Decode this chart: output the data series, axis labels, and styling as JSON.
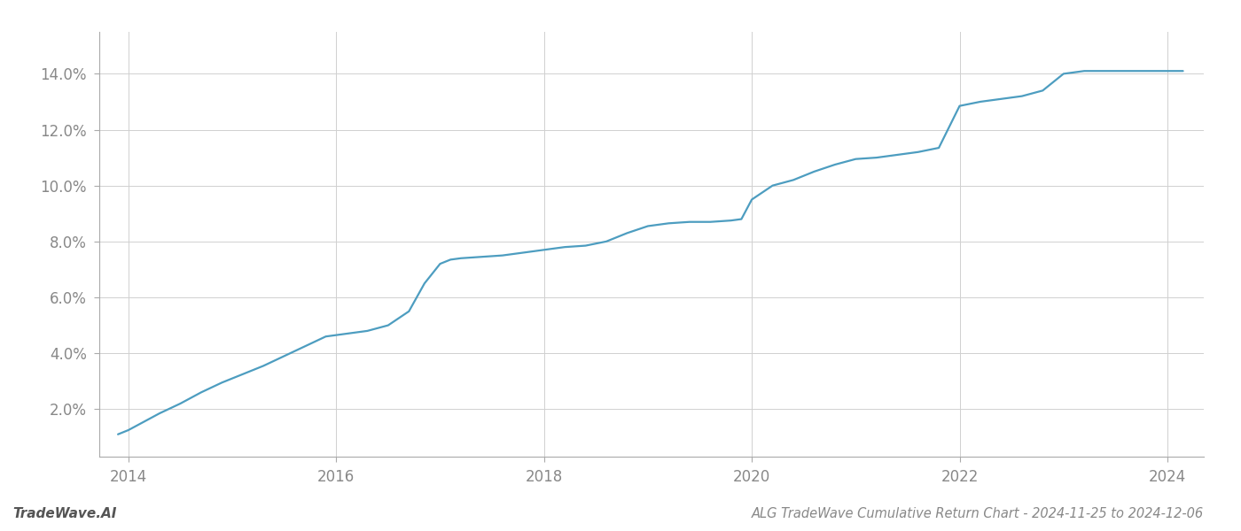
{
  "x": [
    2013.9,
    2014.0,
    2014.15,
    2014.3,
    2014.5,
    2014.7,
    2014.9,
    2015.1,
    2015.3,
    2015.5,
    2015.7,
    2015.9,
    2016.1,
    2016.3,
    2016.5,
    2016.7,
    2016.85,
    2017.0,
    2017.1,
    2017.2,
    2017.4,
    2017.6,
    2017.8,
    2018.0,
    2018.2,
    2018.4,
    2018.6,
    2018.8,
    2019.0,
    2019.2,
    2019.4,
    2019.6,
    2019.8,
    2019.9,
    2020.0,
    2020.1,
    2020.2,
    2020.4,
    2020.6,
    2020.8,
    2021.0,
    2021.2,
    2021.4,
    2021.6,
    2021.8,
    2022.0,
    2022.2,
    2022.4,
    2022.6,
    2022.8,
    2023.0,
    2023.1,
    2023.2,
    2023.5,
    2023.8,
    2024.0,
    2024.15
  ],
  "y": [
    1.1,
    1.25,
    1.55,
    1.85,
    2.2,
    2.6,
    2.95,
    3.25,
    3.55,
    3.9,
    4.25,
    4.6,
    4.7,
    4.8,
    5.0,
    5.5,
    6.5,
    7.2,
    7.35,
    7.4,
    7.45,
    7.5,
    7.6,
    7.7,
    7.8,
    7.85,
    8.0,
    8.3,
    8.55,
    8.65,
    8.7,
    8.7,
    8.75,
    8.8,
    9.5,
    9.75,
    10.0,
    10.2,
    10.5,
    10.75,
    10.95,
    11.0,
    11.1,
    11.2,
    11.35,
    12.85,
    13.0,
    13.1,
    13.2,
    13.4,
    14.0,
    14.05,
    14.1,
    14.1,
    14.1,
    14.1,
    14.1
  ],
  "line_color": "#4d9dc0",
  "line_width": 1.6,
  "title": "ALG TradeWave Cumulative Return Chart - 2024-11-25 to 2024-12-06",
  "watermark": "TradeWave.AI",
  "yticks": [
    2.0,
    4.0,
    6.0,
    8.0,
    10.0,
    12.0,
    14.0
  ],
  "xticks": [
    2014,
    2016,
    2018,
    2020,
    2022,
    2024
  ],
  "xlim": [
    2013.72,
    2024.35
  ],
  "ylim": [
    0.3,
    15.5
  ],
  "background_color": "#ffffff",
  "grid_color": "#d0d0d0",
  "tick_color": "#888888",
  "spine_color": "#aaaaaa",
  "title_fontsize": 10.5,
  "watermark_fontsize": 11
}
